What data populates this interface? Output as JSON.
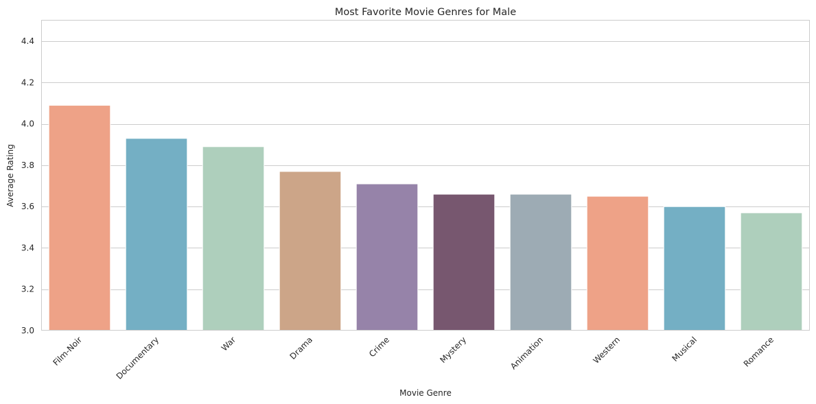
{
  "chart_data": {
    "type": "bar",
    "title": "Most Favorite Movie Genres for Male",
    "xlabel": "Movie Genre",
    "ylabel": "Average Rating",
    "categories": [
      "Film-Noir",
      "Documentary",
      "War",
      "Drama",
      "Crime",
      "Mystery",
      "Animation",
      "Western",
      "Musical",
      "Romance"
    ],
    "values": [
      4.09,
      3.93,
      3.89,
      3.77,
      3.71,
      3.66,
      3.66,
      3.65,
      3.6,
      3.57
    ],
    "colors": [
      "#eea287",
      "#74afc4",
      "#aecfbc",
      "#cca588",
      "#9683a9",
      "#77576f",
      "#9dabb4",
      "#eea287",
      "#74afc4",
      "#aecfbc"
    ],
    "ylim": [
      3.0,
      4.5
    ],
    "yticks": [
      "3.0",
      "3.2",
      "3.4",
      "3.6",
      "3.8",
      "4.0",
      "4.2",
      "4.4"
    ],
    "grid": true,
    "legend": "none"
  }
}
